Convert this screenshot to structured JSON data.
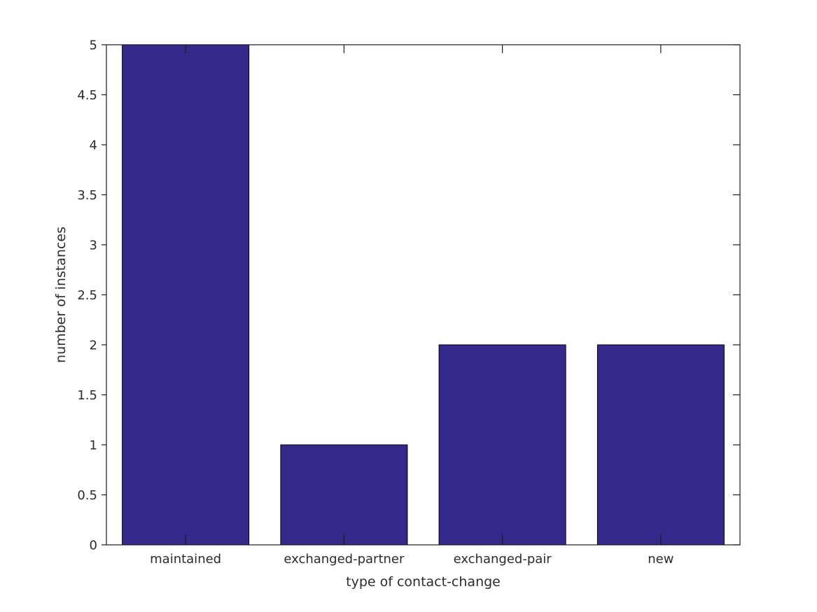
{
  "figure": {
    "background": "#ffffff"
  },
  "chart_data": {
    "type": "bar",
    "title": "",
    "categories": [
      "maintained",
      "exchanged-partner",
      "exchanged-pair",
      "new"
    ],
    "values": [
      5,
      1,
      2,
      2
    ],
    "xlabel": "type of contact-change",
    "ylabel": "number of instances",
    "ylim": [
      0,
      5
    ],
    "ytick_step": 0.5,
    "ytick_labels": [
      "0",
      "0.5",
      "1",
      "1.5",
      "2",
      "2.5",
      "3",
      "3.5",
      "4",
      "4.5",
      "5"
    ],
    "grid": false,
    "legend": null,
    "bar_width_fraction": 0.8,
    "bar_color": "#352a8b",
    "bar_edge_color": "#000000",
    "axis_color": "#1a1a1a",
    "text_color": "#2b2b2b"
  }
}
